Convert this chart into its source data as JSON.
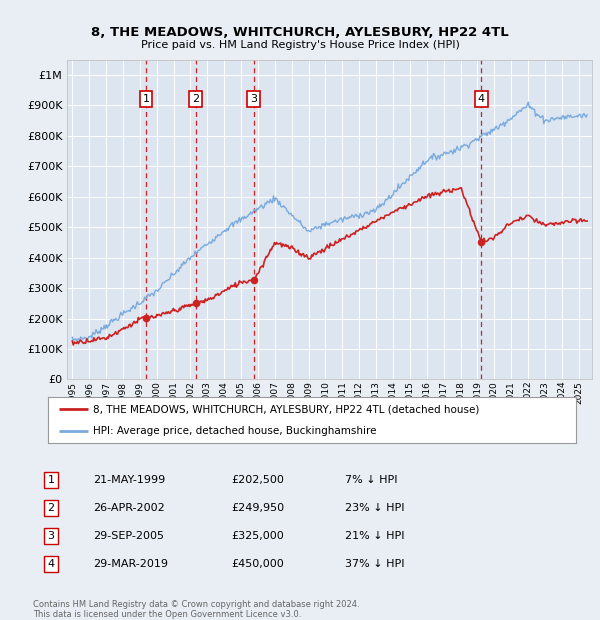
{
  "title": "8, THE MEADOWS, WHITCHURCH, AYLESBURY, HP22 4TL",
  "subtitle": "Price paid vs. HM Land Registry's House Price Index (HPI)",
  "ytick_values": [
    0,
    100000,
    200000,
    300000,
    400000,
    500000,
    600000,
    700000,
    800000,
    900000,
    1000000
  ],
  "ylim": [
    0,
    1050000
  ],
  "background_color": "#e8eef4",
  "plot_bg_color": "#dce5f0",
  "grid_color": "#ffffff",
  "hpi_color": "#7aaadd",
  "price_color": "#cc2222",
  "transactions": [
    {
      "num": 1,
      "date": "21-MAY-1999",
      "year": 1999.38,
      "price": 202500,
      "pct": "7% ↓ HPI"
    },
    {
      "num": 2,
      "date": "26-APR-2002",
      "year": 2002.32,
      "price": 249950,
      "pct": "23% ↓ HPI"
    },
    {
      "num": 3,
      "date": "29-SEP-2005",
      "year": 2005.75,
      "price": 325000,
      "pct": "21% ↓ HPI"
    },
    {
      "num": 4,
      "date": "29-MAR-2019",
      "year": 2019.24,
      "price": 450000,
      "pct": "37% ↓ HPI"
    }
  ],
  "legend_label_price": "8, THE MEADOWS, WHITCHURCH, AYLESBURY, HP22 4TL (detached house)",
  "legend_label_hpi": "HPI: Average price, detached house, Buckinghamshire",
  "footer": "Contains HM Land Registry data © Crown copyright and database right 2024.\nThis data is licensed under the Open Government Licence v3.0.",
  "table_rows": [
    [
      "1",
      "21-MAY-1999",
      "£202,500",
      "7% ↓ HPI"
    ],
    [
      "2",
      "26-APR-2002",
      "£249,950",
      "23% ↓ HPI"
    ],
    [
      "3",
      "29-SEP-2005",
      "£325,000",
      "21% ↓ HPI"
    ],
    [
      "4",
      "29-MAR-2019",
      "£450,000",
      "37% ↓ HPI"
    ]
  ]
}
